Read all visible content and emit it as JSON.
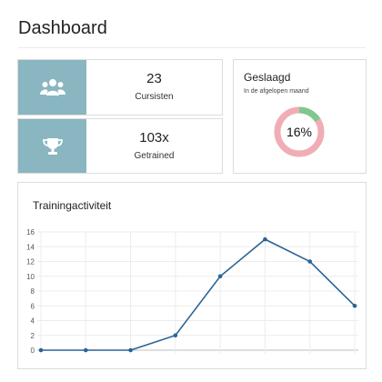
{
  "page": {
    "title": "Dashboard"
  },
  "stats": [
    {
      "value": "23",
      "label": "Cursisten",
      "icon": "users-icon"
    },
    {
      "value": "103x",
      "label": "Getrained",
      "icon": "trophy-icon"
    }
  ],
  "geslaagd": {
    "title": "Geslaagd",
    "subtitle": "In de afgelopen maand",
    "percent_label": "16%",
    "fraction": 0.16,
    "colors": {
      "passed": "#7dc98e",
      "failed": "#f1adb5"
    }
  },
  "activity": {
    "title": "Trainingactiviteit"
  },
  "colors": {
    "accent": "#89b6c0",
    "line": "#2a6496"
  },
  "chart_data": {
    "type": "line",
    "x": [
      1,
      2,
      3,
      4,
      5,
      6,
      7,
      8
    ],
    "series": [
      {
        "values": [
          0,
          0,
          0,
          2,
          10,
          15,
          12,
          6
        ]
      }
    ],
    "y_ticks": [
      "0",
      "2",
      "4",
      "6",
      "8",
      "10",
      "12",
      "14",
      "16"
    ],
    "ylim": [
      0,
      16
    ],
    "grid": true
  }
}
